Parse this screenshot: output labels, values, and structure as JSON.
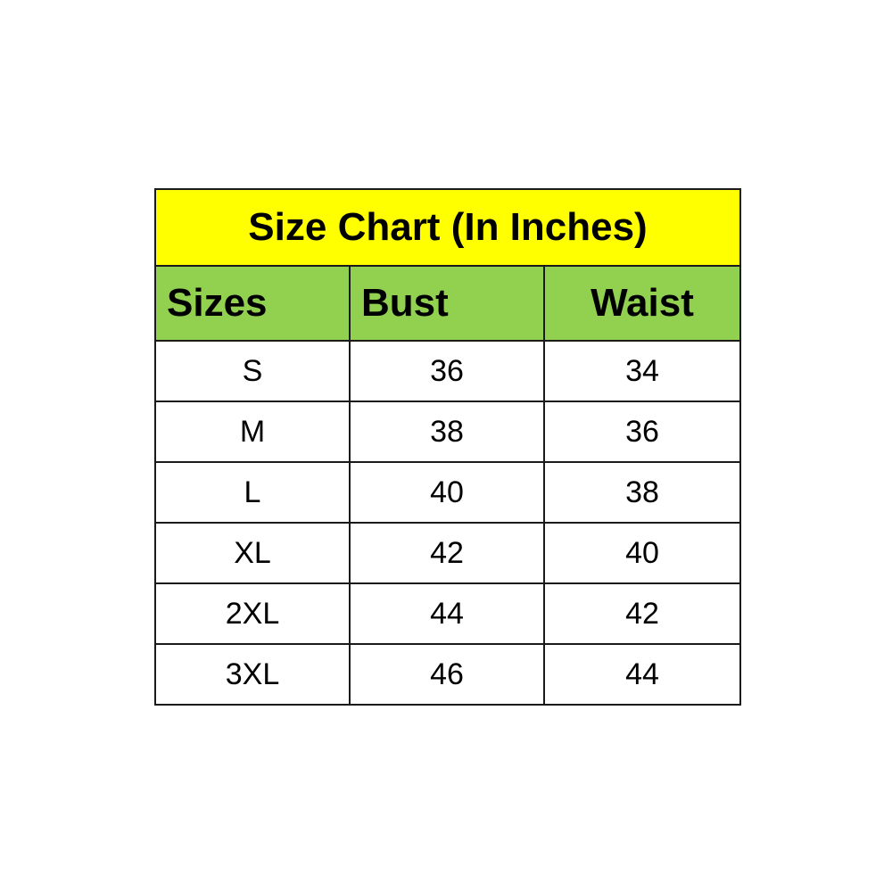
{
  "title": "Size Chart (In Inches)",
  "colors": {
    "title_bg": "#FFFF00",
    "header_bg": "#92D050",
    "border": "#1A1A1A"
  },
  "columns": [
    "Sizes",
    "Bust",
    "Waist"
  ],
  "rows": [
    [
      "S",
      "36",
      "34"
    ],
    [
      "M",
      "38",
      "36"
    ],
    [
      "L",
      "40",
      "38"
    ],
    [
      "XL",
      "42",
      "40"
    ],
    [
      "2XL",
      "44",
      "42"
    ],
    [
      "3XL",
      "46",
      "44"
    ]
  ]
}
